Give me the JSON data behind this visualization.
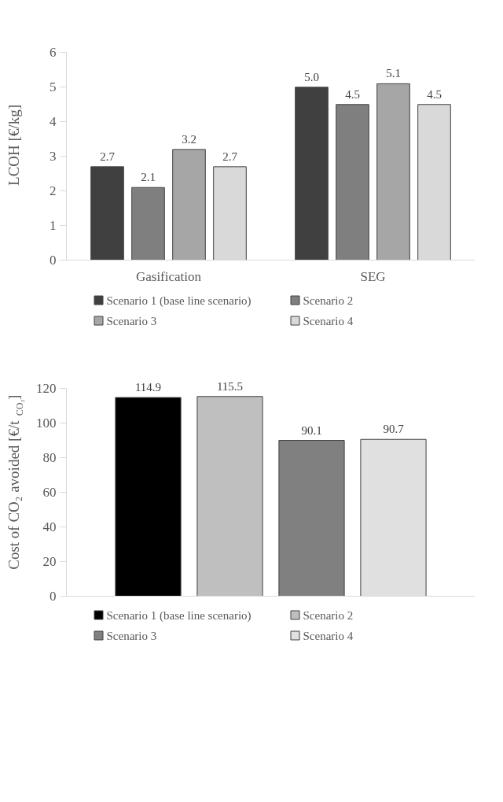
{
  "chart_data": [
    {
      "type": "bar",
      "ylabel": "LCOH [€/kg]",
      "categories": [
        "Gasification",
        "SEG"
      ],
      "ylim": [
        0,
        6
      ],
      "yticks": [
        0,
        1,
        2,
        3,
        4,
        5,
        6
      ],
      "grid": false,
      "legend": "bottom",
      "series": [
        {
          "name": "Scenario 1 (base line scenario)",
          "color": "#404040",
          "values": [
            2.7,
            5.0
          ],
          "value_labels": [
            "2.7",
            "5.0"
          ]
        },
        {
          "name": "Scenario 2",
          "color": "#7f7f7f",
          "values": [
            2.1,
            4.5
          ],
          "value_labels": [
            "2.1",
            "4.5"
          ]
        },
        {
          "name": "Scenario 3",
          "color": "#a6a6a6",
          "values": [
            3.2,
            5.1
          ],
          "value_labels": [
            "3.2",
            "5.1"
          ]
        },
        {
          "name": "Scenario 4",
          "color": "#d9d9d9",
          "values": [
            2.7,
            4.5
          ],
          "value_labels": [
            "2.7",
            "4.5"
          ]
        }
      ]
    },
    {
      "type": "bar",
      "ylabel": "Cost of CO₂ avoided [€/t$_{CO₂}$]",
      "categories": [
        null
      ],
      "ylim": [
        0,
        120
      ],
      "yticks": [
        0,
        20,
        40,
        60,
        80,
        100,
        120
      ],
      "grid": false,
      "legend": "bottom",
      "series": [
        {
          "name": "Scenario 1 (base line scenario)",
          "color": "#000000",
          "values": [
            114.9
          ],
          "value_labels": [
            "114.9"
          ]
        },
        {
          "name": "Scenario 2",
          "color": "#bfbfbf",
          "values": [
            115.5
          ],
          "value_labels": [
            "115.5"
          ]
        },
        {
          "name": "Scenario 3",
          "color": "#808080",
          "values": [
            90.1
          ],
          "value_labels": [
            "90.1"
          ]
        },
        {
          "name": "Scenario 4",
          "color": "#e0e0e0",
          "values": [
            90.7
          ],
          "value_labels": [
            "90.7"
          ]
        }
      ]
    }
  ]
}
